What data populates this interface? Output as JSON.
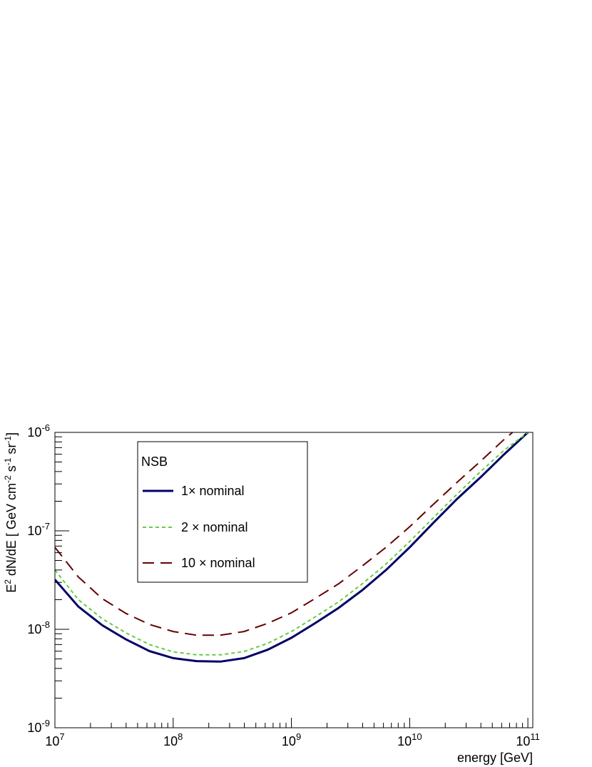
{
  "chart_data": {
    "type": "line",
    "xlabel": "energy [GeV]",
    "ylabel_parts": [
      "E",
      "2",
      " dN/dE [ GeV cm",
      "-2",
      " s",
      "-1",
      " sr",
      "-1",
      "]"
    ],
    "xscale": "log",
    "yscale": "log",
    "xlim": [
      10000000,
      110000000000
    ],
    "ylim": [
      1e-09,
      1e-06
    ],
    "x_ticks": [
      {
        "value": 10000000,
        "base": "10",
        "exp": "7"
      },
      {
        "value": 100000000,
        "base": "10",
        "exp": "8"
      },
      {
        "value": 1000000000,
        "base": "10",
        "exp": "9"
      },
      {
        "value": 10000000000,
        "base": "10",
        "exp": "10"
      },
      {
        "value": 100000000000,
        "base": "10",
        "exp": "11"
      }
    ],
    "y_ticks": [
      {
        "value": 1e-09,
        "base": "10",
        "exp": "-9"
      },
      {
        "value": 1e-08,
        "base": "10",
        "exp": "-8"
      },
      {
        "value": 1e-07,
        "base": "10",
        "exp": "-7"
      },
      {
        "value": 1e-06,
        "base": "10",
        "exp": "-6"
      }
    ],
    "grid": false,
    "legend": {
      "title": "NSB",
      "placement": "top-left",
      "entries": [
        "1× nominal",
        "2 × nominal",
        "10 × nominal"
      ]
    },
    "series": [
      {
        "name": "1× nominal",
        "color": "#000066",
        "style": "solid",
        "x": [
          10000000,
          15800000,
          25100000,
          39800000,
          63100000,
          100000000,
          158000000,
          251000000,
          398000000,
          631000000,
          1000000000,
          1580000000,
          2510000000,
          3980000000,
          6310000000,
          10000000000,
          15800000000,
          25100000000,
          39800000000,
          63100000000,
          100000000000
        ],
        "y": [
          3.2e-08,
          1.7e-08,
          1.1e-08,
          7.9e-09,
          6e-09,
          5.1e-09,
          4.75e-09,
          4.7e-09,
          5.1e-09,
          6.2e-09,
          8.2e-09,
          1.15e-08,
          1.65e-08,
          2.5e-08,
          4e-08,
          6.8e-08,
          1.2e-07,
          2.1e-07,
          3.5e-07,
          6e-07,
          1e-06
        ]
      },
      {
        "name": "2 × nominal",
        "color": "#66cc44",
        "style": "dashed",
        "x": [
          10000000,
          15800000,
          25100000,
          39800000,
          63100000,
          100000000,
          158000000,
          251000000,
          398000000,
          631000000,
          1000000000,
          1580000000,
          2510000000,
          3980000000,
          6310000000,
          10000000000,
          15800000000,
          25100000000,
          39800000000,
          63100000000,
          100000000000
        ],
        "y": [
          4e-08,
          2e-08,
          1.28e-08,
          9.2e-09,
          7e-09,
          5.9e-09,
          5.5e-09,
          5.5e-09,
          5.95e-09,
          7.2e-09,
          9.5e-09,
          1.33e-08,
          1.9e-08,
          2.9e-08,
          4.6e-08,
          7.8e-08,
          1.35e-07,
          2.35e-07,
          4e-07,
          6.6e-07,
          1e-06
        ]
      },
      {
        "name": "10 × nominal",
        "color": "#660000",
        "style": "long-dashed",
        "x": [
          10000000,
          15800000,
          25100000,
          39800000,
          63100000,
          100000000,
          158000000,
          251000000,
          398000000,
          631000000,
          1000000000,
          1580000000,
          2510000000,
          3980000000,
          6310000000,
          10000000000,
          15800000000,
          25100000000,
          39800000000,
          63100000000,
          100000000000
        ],
        "y": [
          6.8e-08,
          3.4e-08,
          2.05e-08,
          1.45e-08,
          1.12e-08,
          9.5e-09,
          8.7e-09,
          8.7e-09,
          9.5e-09,
          1.15e-08,
          1.47e-08,
          2.05e-08,
          2.9e-08,
          4.4e-08,
          6.8e-08,
          1.1e-07,
          1.85e-07,
          3.1e-07,
          5.1e-07,
          8.5e-07,
          1.35e-06
        ]
      }
    ]
  }
}
